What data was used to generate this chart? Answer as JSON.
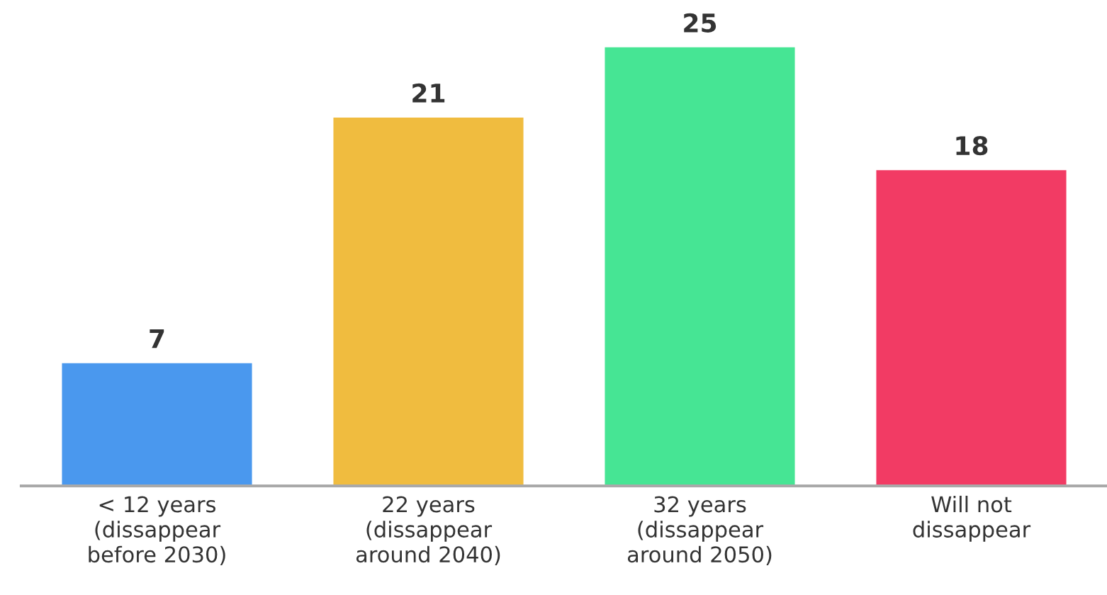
{
  "chart_data": {
    "type": "bar",
    "categories": [
      "< 12 years\n(dissappear\nbefore 2030)",
      "22 years\n(dissappear\naround 2040)",
      "32 years\n(dissappear\naround 2050)",
      "Will not\ndissappear"
    ],
    "values": [
      7,
      21,
      25,
      18
    ],
    "colors": [
      "#4a98ee",
      "#f0bc3f",
      "#46e594",
      "#f23b64"
    ],
    "data_labels": true
  }
}
